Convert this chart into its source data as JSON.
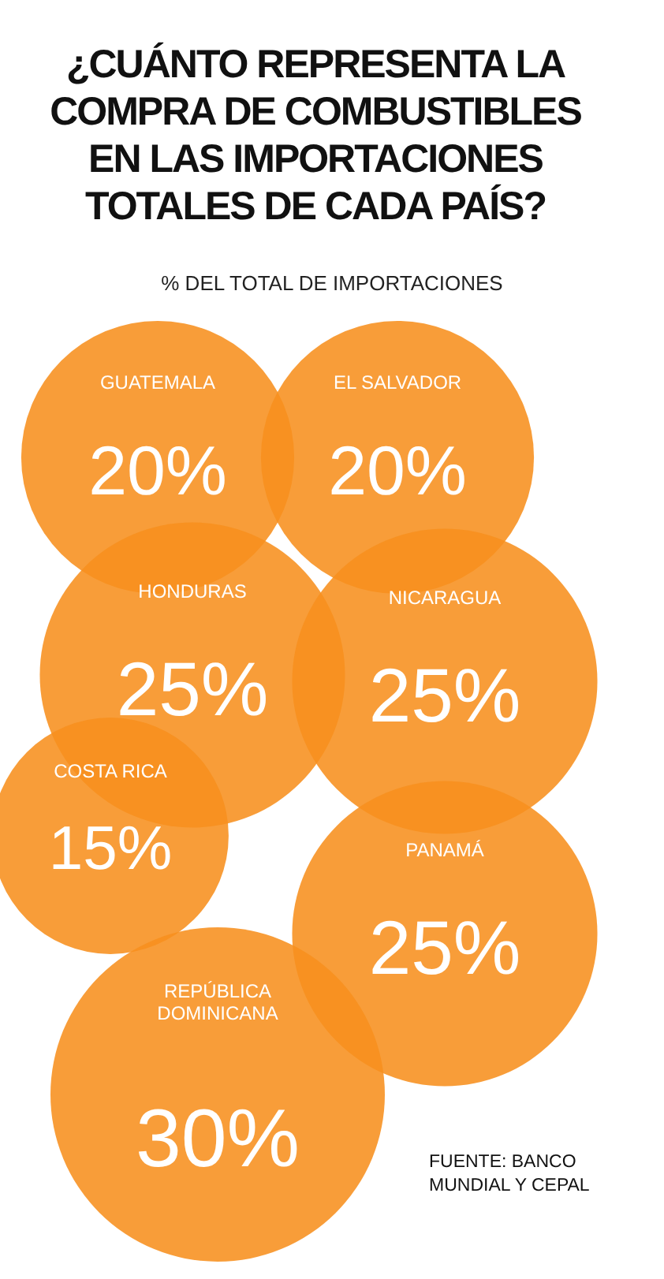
{
  "chart_data": {
    "type": "other",
    "title": "¿CUÁNTO REPRESENTA LA COMPRA DE COMBUSTIBLES EN LAS IMPORTACIONES TOTALES DE CADA PAÍS?",
    "subtitle": "% DEL TOTAL DE IMPORTACIONES",
    "categories": [
      "GUATEMALA",
      "EL SALVADOR",
      "HONDURAS",
      "NICARAGUA",
      "COSTA RICA",
      "PANAMÁ",
      "REPÚBLICA\nDOMINICANA"
    ],
    "values": [
      20,
      20,
      25,
      25,
      15,
      25,
      30
    ],
    "value_labels": [
      "20%",
      "20%",
      "25%",
      "25%",
      "15%",
      "25%",
      "30%"
    ],
    "color": "#f7901e",
    "annotations": [
      "FUENTE: BANCO MUNDIAL Y CEPAL"
    ]
  }
}
